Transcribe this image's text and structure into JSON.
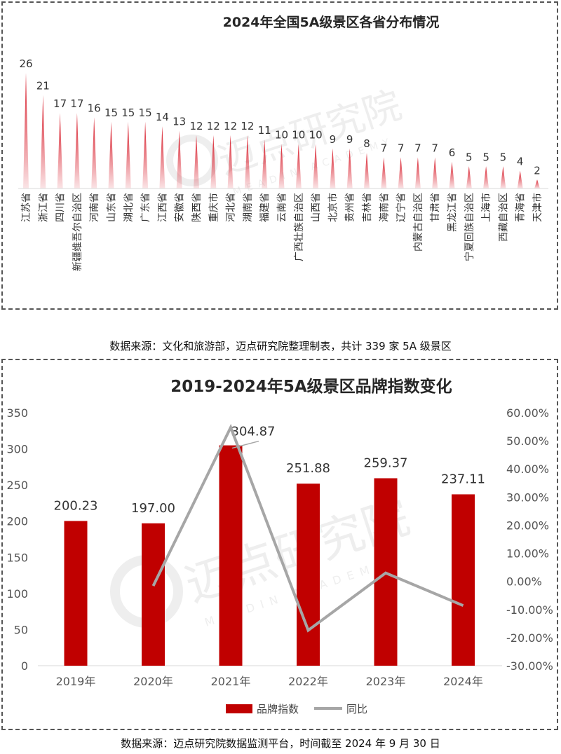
{
  "chart_data": [
    {
      "type": "area",
      "title": "2024年全国5A级景区各省分布情况",
      "categories": [
        "江苏省",
        "浙江省",
        "四川省",
        "新疆维吾尔自治区",
        "河南省",
        "山东省",
        "湖北省",
        "广东省",
        "江西省",
        "安徽省",
        "陕西省",
        "重庆市",
        "河北省",
        "湖南省",
        "福建省",
        "云南省",
        "广西壮族自治区",
        "山西省",
        "北京市",
        "贵州省",
        "吉林省",
        "海南省",
        "辽宁省",
        "内蒙古自治区",
        "甘肃省",
        "黑龙江省",
        "宁夏回族自治区",
        "上海市",
        "西藏自治区",
        "青海省",
        "天津市"
      ],
      "values": [
        26,
        21,
        17,
        17,
        16,
        15,
        15,
        15,
        14,
        13,
        12,
        12,
        12,
        12,
        11,
        10,
        10,
        10,
        9,
        9,
        8,
        7,
        7,
        7,
        7,
        6,
        5,
        5,
        5,
        4,
        2
      ],
      "ylim": [
        0,
        26
      ],
      "color": "#d81e2c",
      "grid": false
    },
    {
      "type": "bar",
      "title": "2019-2024年5A级景区品牌指数变化",
      "categories": [
        "2019年",
        "2020年",
        "2021年",
        "2022年",
        "2023年",
        "2024年"
      ],
      "series": [
        {
          "name": "品牌指数",
          "type": "bar",
          "axis": "left",
          "values": [
            200.23,
            197.0,
            304.87,
            251.88,
            259.37,
            237.11
          ],
          "labels": [
            "200.23",
            "197.00",
            "304.87",
            "251.88",
            "259.37",
            "237.11"
          ],
          "color": "#c00000"
        },
        {
          "name": "同比",
          "type": "line",
          "axis": "right",
          "values": [
            null,
            -1.6,
            54.8,
            -17.4,
            3.0,
            -8.6
          ],
          "color": "#a6a6a6"
        }
      ],
      "y_left": {
        "range": [
          0,
          350
        ],
        "ticks": [
          "0",
          "50",
          "100",
          "150",
          "200",
          "250",
          "300",
          "350"
        ]
      },
      "y_right": {
        "range": [
          -30,
          60
        ],
        "ticks": [
          "-30.00%",
          "-20.00%",
          "-10.00%",
          "0.00%",
          "10.00%",
          "20.00%",
          "30.00%",
          "40.00%",
          "50.00%",
          "60.00%"
        ]
      },
      "legend_position": "bottom",
      "grid": false
    }
  ],
  "sources": {
    "chart1": "数据来源：文化和旅游部，迈点研究院整理制表，共计 339 家 5A 级景区",
    "chart2": "数据来源：迈点研究院数据监测平台，时间截至 2024 年 9 月 30 日"
  },
  "watermark": {
    "brand": "迈点研究院",
    "sub": "MEADIN ACADEMY"
  }
}
